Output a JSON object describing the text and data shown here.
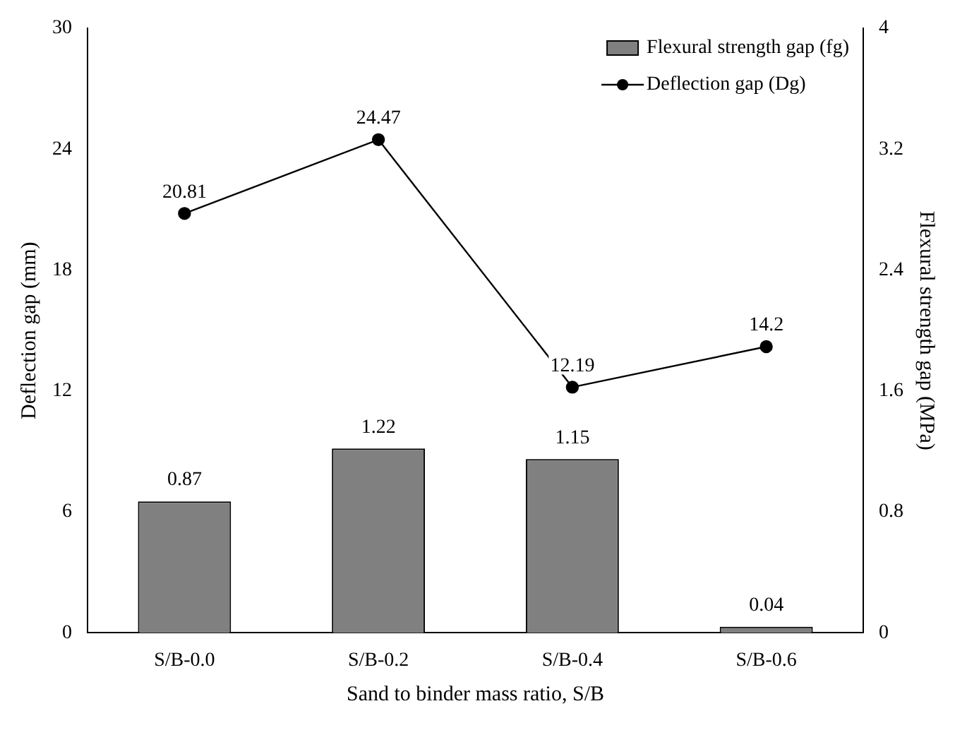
{
  "chart_data": {
    "type": "bar",
    "xlabel": "Sand to binder mass ratio, S/B",
    "ylabel": "Deflection gap (mm)",
    "y2label": "Flexural strength gap (MPa)",
    "categories": [
      "S/B-0.0",
      "S/B-0.2",
      "S/B-0.4",
      "S/B-0.6"
    ],
    "series": [
      {
        "name": "Flexural strength gap (fg)",
        "axis": "y2",
        "color": "#808080",
        "values": [
          0.87,
          1.22,
          1.15,
          0.04
        ]
      },
      {
        "name": "Deflection gap (Dg)",
        "type": "line",
        "axis": "y",
        "color": "#000000",
        "values": [
          20.81,
          24.47,
          12.19,
          14.2
        ]
      }
    ],
    "ylim": [
      0,
      30
    ],
    "yticks": [
      0,
      6,
      12,
      18,
      24,
      30
    ],
    "y2lim": [
      0,
      4
    ],
    "y2ticks": [
      0,
      0.8,
      1.6,
      2.4,
      3.2,
      4
    ],
    "data_labels": true,
    "legend": "top right",
    "marker": "circle",
    "line_style": "solid",
    "grid": false
  }
}
